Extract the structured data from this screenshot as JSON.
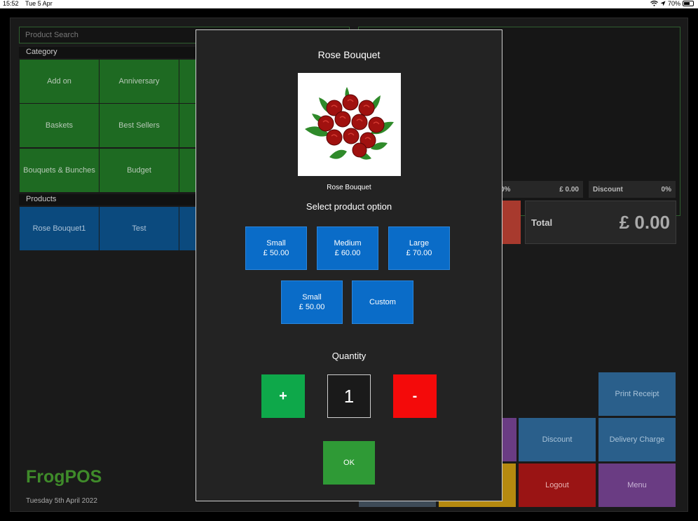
{
  "status_bar": {
    "time": "15:52",
    "date": "Tue 5 Apr",
    "battery": "70%",
    "battery_level": 0.7
  },
  "search": {
    "placeholder": "Product Search"
  },
  "category_label": "Category",
  "categories": [
    "Add on",
    "Anniversary",
    "Baskets",
    "Best Sellers",
    "Bouquets & Bunches",
    "Budget"
  ],
  "products_label": "Products",
  "products": [
    "Rose Bouquet1",
    "Test"
  ],
  "summary": {
    "tax_value": "0%",
    "subtotal_value": "£ 0.00",
    "discount_label": "Discount",
    "discount_value": "0%"
  },
  "total": {
    "label": "Total",
    "value": "£ 0.00"
  },
  "actions": {
    "print_receipt": "Print Receipt",
    "discount": "Discount",
    "delivery_charge": "Delivery Charge",
    "logout": "Logout",
    "menu": "Menu"
  },
  "brand": {
    "name": "FrogPOS",
    "date": "Tuesday 5th April 2022"
  },
  "modal": {
    "title": "Rose Bouquet",
    "image_caption": "Rose Bouquet",
    "options_heading": "Select product option",
    "options": [
      {
        "name": "Small",
        "price": "£ 50.00"
      },
      {
        "name": "Medium",
        "price": "£ 60.00"
      },
      {
        "name": "Large",
        "price": "£ 70.00"
      },
      {
        "name": "Small",
        "price": "£ 50.00"
      },
      {
        "name": "Custom",
        "price": ""
      }
    ],
    "quantity_heading": "Quantity",
    "plus": "+",
    "quantity": "1",
    "minus": "-",
    "ok": "OK"
  },
  "colors": {
    "category_tile": "#1e6a22",
    "product_tile": "#0b4a7e",
    "option_button": "#0a6cc8",
    "plus_button": "#0ea84a",
    "minus_button": "#f40a0a",
    "ok_button": "#2f9a36",
    "brand": "#3f8b2a"
  }
}
